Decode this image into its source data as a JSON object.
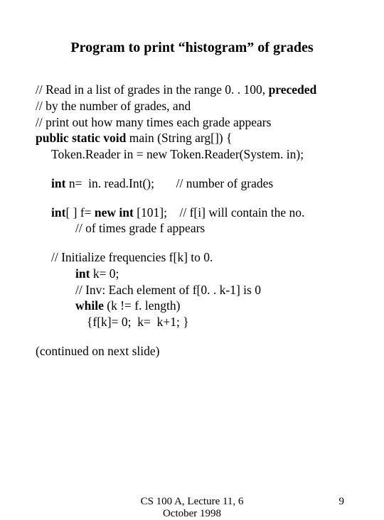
{
  "title": "Program to print “histogram” of grades",
  "code": {
    "c1_a": "// Read in a list of grades in the range 0. . 100, ",
    "c1_b": "preceded",
    "c2": "// by the number of grades, and",
    "c3": "// print out how many times each grade appears",
    "c4_a": "public static void",
    "c4_b": " main (String arg[]) {",
    "c5": "Token.Reader in = new Token.Reader(System. in);",
    "c6_a": "int",
    "c6_b": " n=  in. read.Int();       // number of grades",
    "c7_a": "int",
    "c7_b": "[ ] f= ",
    "c7_c": "new int",
    "c7_d": " [101];    // f[i] will contain the no.",
    "c8": "// of times grade f appears",
    "c9": "// Initialize frequencies f[k] to 0.",
    "c10_a": "int",
    "c10_b": " k= 0;",
    "c11": "// Inv: Each element of f[0. . k-1] is 0",
    "c12_a": "while",
    "c12_b": " (k != f. length)",
    "c13": "{f[k]= 0;  k=  k+1; }",
    "c14": "(continued on next slide)"
  },
  "footer": {
    "center_line1": "CS 100 A, Lecture 11, 6",
    "center_line2": "October 1998",
    "page_number": "9"
  }
}
